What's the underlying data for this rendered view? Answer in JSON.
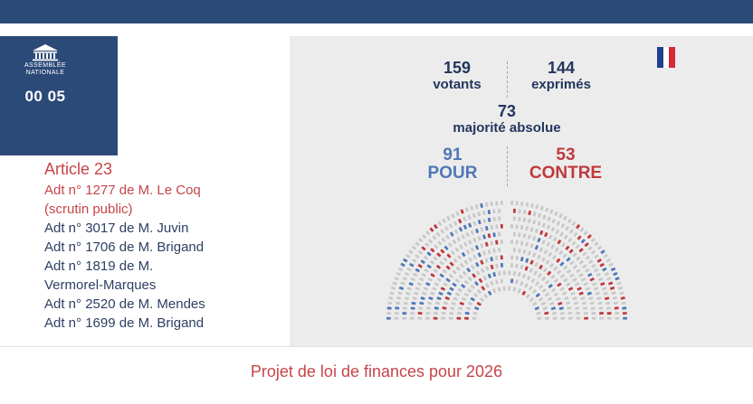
{
  "logo": {
    "line1": "ASSEMBLÉE",
    "line2": "NATIONALE"
  },
  "clock": "00 05",
  "article": {
    "title": "Article 23",
    "amendments": [
      {
        "text": "Adt n° 1277 de M. Le Coq",
        "active": true
      },
      {
        "text": "(scrutin public)",
        "active": true
      },
      {
        "text": "Adt n° 3017 de M. Juvin",
        "active": false
      },
      {
        "text": "Adt n° 1706 de M. Brigand",
        "active": false
      },
      {
        "text": "Adt n° 1819 de M.",
        "active": false
      },
      {
        "text": "Vermorel-Marques",
        "active": false
      },
      {
        "text": "Adt n° 2520 de M. Mendes",
        "active": false
      },
      {
        "text": "Adt n° 1699 de M. Brigand",
        "active": false
      }
    ]
  },
  "vote": {
    "votants": {
      "value": "159",
      "label": "votants"
    },
    "exprimes": {
      "value": "144",
      "label": "exprimés"
    },
    "majorite": {
      "value": "73",
      "label": "majorité absolue"
    },
    "pour": {
      "value": "91",
      "label": "POUR"
    },
    "contre": {
      "value": "53",
      "label": "CONTRE"
    }
  },
  "colors": {
    "navy": "#2c4a78",
    "pour": "#4f78b8",
    "contre": "#c0393d",
    "seat_empty": "#c9c9c9",
    "flag_blue": "#1f3f8f",
    "flag_white": "#ffffff",
    "flag_red": "#d8283a"
  },
  "footer": {
    "title": "Projet de loi de finances pour 2026"
  }
}
